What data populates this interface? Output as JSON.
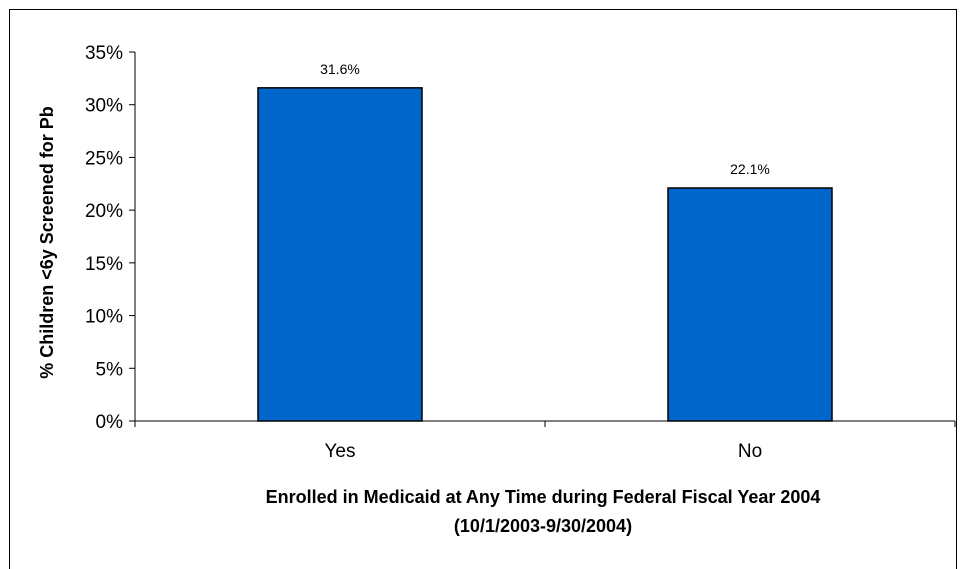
{
  "chart_data": {
    "type": "bar",
    "categories": [
      "Yes",
      "No"
    ],
    "values": [
      31.6,
      22.1
    ],
    "data_labels": [
      "31.6%",
      "22.1%"
    ],
    "title": "",
    "xlabel_line1": "Enrolled in Medicaid at Any Time during Federal Fiscal Year 2004",
    "xlabel_line2": "(10/1/2003-9/30/2004)",
    "ylabel": "% Children <6y Screened for Pb",
    "ylim": [
      0,
      35
    ],
    "yticks": [
      0,
      5,
      10,
      15,
      20,
      25,
      30,
      35
    ],
    "ytick_labels": [
      "0%",
      "5%",
      "10%",
      "15%",
      "20%",
      "25%",
      "30%",
      "35%"
    ],
    "grid": false,
    "bar_color": "#0066CC",
    "bar_edge_color": "#000000"
  }
}
